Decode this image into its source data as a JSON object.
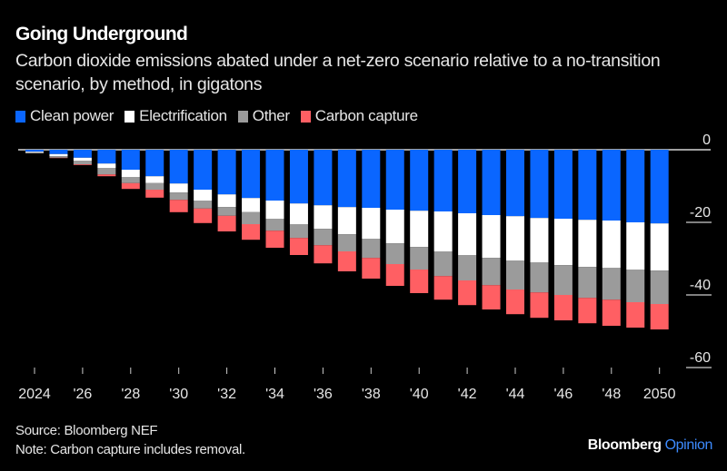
{
  "header": {
    "title": "Going Underground",
    "subtitle": "Carbon dioxide emissions abated under a net-zero scenario relative to a no-transition scenario, by method, in gigatons"
  },
  "footer": {
    "source": "Source: Bloomberg NEF",
    "note": "Note: Carbon capture includes removal.",
    "brand_main": "Bloomberg",
    "brand_sub": "Opinion"
  },
  "chart_data": {
    "type": "bar",
    "stacked": true,
    "title": "Going Underground",
    "subtitle": "Carbon dioxide emissions abated under a net-zero scenario relative to a no-transition scenario, by method, in gigatons",
    "xlabel": "",
    "ylabel": "",
    "ylim": [
      -60,
      0
    ],
    "yticks": [
      0,
      -20,
      -40,
      -60
    ],
    "ytick_labels": [
      "0",
      "-20",
      "-40",
      "-60"
    ],
    "legend_position": "top-left",
    "categories": [
      "2024",
      "2025",
      "2026",
      "2027",
      "2028",
      "2029",
      "2030",
      "2031",
      "2032",
      "2033",
      "2034",
      "2035",
      "2036",
      "2037",
      "2038",
      "2039",
      "2040",
      "2041",
      "2042",
      "2043",
      "2044",
      "2045",
      "2046",
      "2047",
      "2048",
      "2049",
      "2050"
    ],
    "xtick_labels": [
      "2024",
      "'26",
      "'28",
      "'30",
      "'32",
      "'34",
      "'36",
      "'38",
      "'40",
      "'42",
      "'44",
      "'46",
      "'48",
      "2050"
    ],
    "xtick_categories": [
      "2024",
      "2026",
      "2028",
      "2030",
      "2032",
      "2034",
      "2036",
      "2038",
      "2040",
      "2042",
      "2044",
      "2046",
      "2048",
      "2050"
    ],
    "series": [
      {
        "name": "Clean power",
        "color": "#0a66ff",
        "values": [
          -0.5,
          -1.2,
          -2.2,
          -3.8,
          -5.5,
          -7.3,
          -9.3,
          -11.0,
          -12.3,
          -13.3,
          -14.0,
          -14.8,
          -15.3,
          -15.8,
          -16.0,
          -16.5,
          -16.8,
          -17.0,
          -17.5,
          -18.0,
          -18.3,
          -18.8,
          -19.0,
          -19.3,
          -19.5,
          -20.0,
          -20.3
        ]
      },
      {
        "name": "Electrification",
        "color": "#ffffff",
        "values": [
          -0.2,
          -0.6,
          -0.8,
          -1.2,
          -2.0,
          -1.9,
          -2.5,
          -3.0,
          -3.5,
          -3.9,
          -5.0,
          -5.7,
          -6.5,
          -7.5,
          -8.5,
          -9.3,
          -10.0,
          -11.0,
          -11.5,
          -11.8,
          -12.2,
          -12.2,
          -12.8,
          -13.0,
          -13.0,
          -13.0,
          -13.0
        ]
      },
      {
        "name": "Other",
        "color": "#9b9b9b",
        "values": [
          -0.3,
          -0.4,
          -1.0,
          -1.8,
          -1.7,
          -1.8,
          -2.0,
          -2.2,
          -2.4,
          -3.3,
          -3.3,
          -3.8,
          -4.5,
          -4.7,
          -5.3,
          -5.7,
          -6.2,
          -6.8,
          -7.0,
          -7.5,
          -8.0,
          -8.3,
          -8.2,
          -8.5,
          -8.8,
          -9.0,
          -9.2
        ]
      },
      {
        "name": "Carbon capture",
        "color": "#ff5f63",
        "values": [
          0,
          -0.1,
          -0.2,
          -0.5,
          -1.6,
          -2.2,
          -3.4,
          -4.0,
          -4.3,
          -4.3,
          -4.7,
          -4.7,
          -5.0,
          -5.5,
          -5.7,
          -6.0,
          -6.5,
          -6.5,
          -6.8,
          -6.7,
          -6.8,
          -7.0,
          -7.0,
          -7.0,
          -7.2,
          -7.0,
          -7.0
        ]
      }
    ]
  }
}
